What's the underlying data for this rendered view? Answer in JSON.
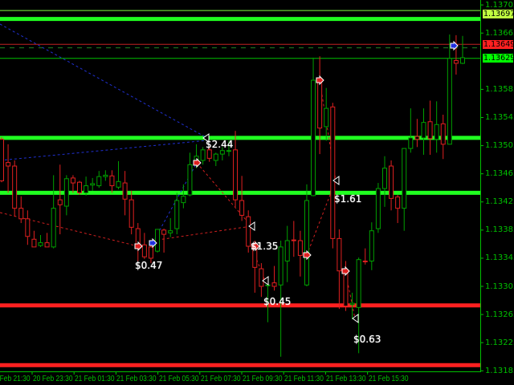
{
  "chart_data": {
    "type": "candlestick",
    "y_axis": {
      "range": [
        1.13185,
        1.13705
      ],
      "ticks": [
        "1.13705",
        "1.13665",
        "1.13585",
        "1.13545",
        "1.13505",
        "1.13465",
        "1.13425",
        "1.13385",
        "1.13345",
        "1.13305",
        "1.13265",
        "1.13225",
        "1.13185"
      ]
    },
    "x_axis": {
      "ticks": [
        "20 Feb 21:30",
        "20 Feb 23:30",
        "21 Feb 01:30",
        "21 Feb 03:30",
        "21 Feb 05:30",
        "21 Feb 07:30",
        "21 Feb 09:30",
        "21 Feb 11:30",
        "21 Feb 13:30",
        "21 Feb 15:30"
      ]
    },
    "candles_ohlc": [
      [
        1.13514,
        1.13517,
        1.13453,
        1.13455
      ],
      [
        1.13481,
        1.13507,
        1.13438,
        1.13476
      ],
      [
        1.13476,
        1.13484,
        1.13404,
        1.13416
      ],
      [
        1.13416,
        1.13433,
        1.13395,
        1.13401
      ],
      [
        1.13401,
        1.13413,
        1.13364,
        1.13376
      ],
      [
        1.13372,
        1.13384,
        1.13361,
        1.13361
      ],
      [
        1.13363,
        1.13378,
        1.13361,
        1.13367
      ],
      [
        1.13367,
        1.13381,
        1.13361,
        1.13361
      ],
      [
        1.13361,
        1.13463,
        1.13359,
        1.13416
      ],
      [
        1.13428,
        1.13478,
        1.13379,
        1.13421
      ],
      [
        1.13419,
        1.13463,
        1.13406,
        1.13458
      ],
      [
        1.13459,
        1.13463,
        1.13438,
        1.13452
      ],
      [
        1.13453,
        1.13455,
        1.13435,
        1.13438
      ],
      [
        1.13438,
        1.13461,
        1.13434,
        1.13448
      ],
      [
        1.13449,
        1.13459,
        1.13441,
        1.13451
      ],
      [
        1.13448,
        1.13469,
        1.13445,
        1.13461
      ],
      [
        1.13461,
        1.1347,
        1.13455,
        1.13463
      ],
      [
        1.13462,
        1.1347,
        1.13438,
        1.13448
      ],
      [
        1.13446,
        1.13483,
        1.13443,
        1.13454
      ],
      [
        1.13452,
        1.13469,
        1.13406,
        1.13429
      ],
      [
        1.13428,
        1.13441,
        1.13379,
        1.13389
      ],
      [
        1.13387,
        1.13395,
        1.13341,
        1.13364
      ],
      [
        1.13364,
        1.13381,
        1.13344,
        1.13347
      ],
      [
        1.13361,
        1.1337,
        1.13338,
        1.13345
      ],
      [
        1.13355,
        1.13386,
        1.13353,
        1.13386
      ],
      [
        1.13385,
        1.13387,
        1.13353,
        1.13379
      ],
      [
        1.13381,
        1.13402,
        1.13375,
        1.13384
      ],
      [
        1.13387,
        1.13438,
        1.13379,
        1.13427
      ],
      [
        1.13424,
        1.1345,
        1.13416,
        1.13433
      ],
      [
        1.13435,
        1.13495,
        1.13433,
        1.13478
      ],
      [
        1.13478,
        1.13507,
        1.13473,
        1.1349
      ],
      [
        1.13484,
        1.13503,
        1.13478,
        1.13499
      ],
      [
        1.13499,
        1.13503,
        1.13482,
        1.13487
      ],
      [
        1.13484,
        1.13495,
        1.13476,
        1.13493
      ],
      [
        1.13493,
        1.13503,
        1.13484,
        1.13498
      ],
      [
        1.13498,
        1.13512,
        1.1349,
        1.13498
      ],
      [
        1.13499,
        1.13526,
        1.13418,
        1.13428
      ],
      [
        1.13427,
        1.13462,
        1.13398,
        1.13406
      ],
      [
        1.13404,
        1.13413,
        1.13353,
        1.13362
      ],
      [
        1.13362,
        1.1337,
        1.13296,
        1.13332
      ],
      [
        1.1333,
        1.13338,
        1.1329,
        1.13305
      ],
      [
        1.13307,
        1.13319,
        1.13254,
        1.13307
      ],
      [
        1.1331,
        1.13334,
        1.13299,
        1.13305
      ],
      [
        1.13307,
        1.1337,
        1.13205,
        1.13361
      ],
      [
        1.13341,
        1.13391,
        1.13311,
        1.1337
      ],
      [
        1.13371,
        1.13398,
        1.13347,
        1.1337
      ],
      [
        1.1337,
        1.13384,
        1.13319,
        1.13349
      ],
      [
        1.13307,
        1.1345,
        1.13305,
        1.13427
      ],
      [
        1.13434,
        1.1363,
        1.13433,
        1.13598
      ],
      [
        1.13598,
        1.13632,
        1.13493,
        1.1353
      ],
      [
        1.13532,
        1.13587,
        1.13512,
        1.13558
      ],
      [
        1.1356,
        1.13566,
        1.13359,
        1.13373
      ],
      [
        1.13373,
        1.13386,
        1.13273,
        1.13327
      ],
      [
        1.13327,
        1.13341,
        1.1327,
        1.13277
      ],
      [
        1.13279,
        1.13296,
        1.13258,
        1.13281
      ],
      [
        1.13275,
        1.13346,
        1.1321,
        1.13343
      ],
      [
        1.13341,
        1.13359,
        1.13336,
        1.1334
      ],
      [
        1.13341,
        1.13396,
        1.13328,
        1.13384
      ],
      [
        1.13387,
        1.13452,
        1.13381,
        1.13444
      ],
      [
        1.13444,
        1.1349,
        1.13418,
        1.13473
      ],
      [
        1.13476,
        1.13484,
        1.13413,
        1.1343
      ],
      [
        1.13432,
        1.13435,
        1.13395,
        1.13416
      ],
      [
        1.13416,
        1.13501,
        1.13384,
        1.13501
      ],
      [
        1.13501,
        1.13558,
        1.13495,
        1.13516
      ],
      [
        1.13518,
        1.13543,
        1.13503,
        1.13514
      ],
      [
        1.13516,
        1.13558,
        1.13492,
        1.13538
      ],
      [
        1.13539,
        1.13569,
        1.13492,
        1.13515
      ],
      [
        1.13514,
        1.13568,
        1.13495,
        1.13535
      ],
      [
        1.13536,
        1.13549,
        1.13486,
        1.13507
      ],
      [
        1.13507,
        1.13663,
        1.13507,
        1.13629
      ],
      [
        1.13626,
        1.13662,
        1.13606,
        1.13622
      ],
      [
        1.13622,
        1.13661,
        1.13621,
        1.1363
      ]
    ],
    "levels": {
      "green_thick": [
        1.13685,
        1.13516,
        1.13438
      ],
      "red_thick": [
        1.13278,
        1.13193
      ],
      "price_tags": [
        {
          "value": "1.13697",
          "color": "#c0ff40"
        },
        {
          "value": "1.13649",
          "color": "#ff2020"
        },
        {
          "value": "1.13629",
          "color": "#00ff00"
        }
      ]
    },
    "trade_labels": [
      "$2.44",
      "$0.47",
      "$1.35",
      "$1.61",
      "$0.45",
      "$0.63"
    ],
    "colors": {
      "bull": "#00a000",
      "bear": "#e02020",
      "axis": "#00c000",
      "background": "#000000"
    },
    "grid": false
  }
}
